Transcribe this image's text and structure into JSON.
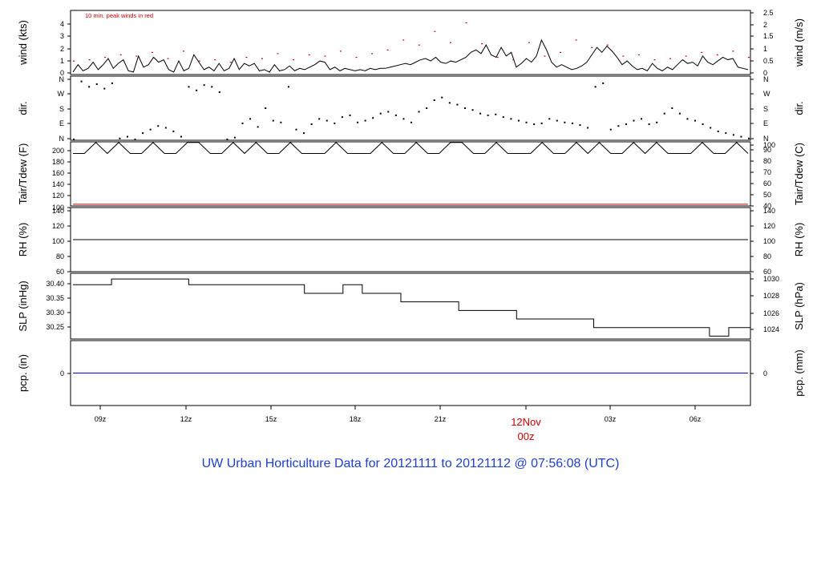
{
  "title": "UW Urban Horticulture Data for 20121111  to  20121112 @ 07:56:08  (UTC)",
  "colors": {
    "series": "#000000",
    "peak": "#cc0000",
    "precip": "#0000cc",
    "title": "#1f3fcf",
    "date": "#cc0000",
    "frame": "#000000"
  },
  "x_axis": {
    "ticks": [
      "09z",
      "12z",
      "15z",
      "18z",
      "21z",
      "00z",
      "03z",
      "06z"
    ],
    "date_label": "12Nov",
    "date_hour": "00z"
  },
  "chart_data": [
    {
      "type": "line",
      "panel": "wind",
      "ylabel_left": "wind (kts)",
      "ylabel_right": "wind (m/s)",
      "left_ticks": [
        "0",
        "1",
        "2",
        "3",
        "4"
      ],
      "right_ticks": [
        "0",
        "0.5",
        "1",
        "1.5",
        "2",
        "2.5"
      ],
      "ylim": [
        0,
        5.2
      ],
      "annotation": "10 min. peak winds in red",
      "series": [
        {
          "values": [
            0.2,
            0.8,
            0.3,
            0.5,
            1.0,
            0.4,
            0.8,
            1.3,
            0.5,
            0.9,
            1.2,
            0.3,
            0.2,
            1.5,
            0.6,
            0.8,
            1.4,
            1.0,
            1.2,
            0.4,
            0.2,
            1.1,
            0.3,
            0.5,
            1.6,
            1.0,
            0.4,
            0.6,
            0.3,
            0.9,
            0.3,
            0.5,
            1.3,
            0.4,
            0.9,
            0.7,
            0.9,
            0.3,
            0.4,
            0.2,
            0.8,
            0.3,
            0.4,
            0.7,
            0.3,
            0.5,
            0.4,
            0.6,
            0.8,
            1.1,
            1.0,
            0.4,
            0.6,
            0.3,
            0.5,
            0.4,
            0.3,
            0.4,
            0.3,
            0.5,
            0.4,
            0.5,
            0.5,
            0.6,
            0.7,
            0.8,
            0.9,
            0.8,
            1.0,
            1.2,
            1.3,
            1.1,
            1.4,
            1.0,
            0.9,
            1.1,
            1.0,
            1.2,
            1.4,
            1.8,
            2.0,
            1.7,
            2.4,
            1.6,
            1.4,
            2.2,
            1.5,
            1.8,
            0.6,
            0.9,
            1.3,
            1.0,
            1.5,
            2.8,
            2.0,
            1.0,
            0.6,
            0.8,
            0.6,
            0.4,
            0.5,
            0.7,
            1.0,
            1.6,
            2.2,
            1.8,
            2.3,
            1.9,
            1.4,
            0.8,
            1.1,
            0.7,
            0.4,
            0.5,
            0.3,
            0.9,
            0.5,
            0.3,
            0.6,
            0.4,
            0.8,
            1.2,
            0.9,
            1.0,
            0.7,
            1.5,
            1.0,
            0.8,
            1.1,
            1.4,
            1.2,
            1.3,
            0.6,
            0.5,
            0.4
          ]
        },
        {
          "name": "peak",
          "values": [
            1.1,
            1.2,
            1.4,
            1.6,
            1.5,
            1.8,
            1.3,
            1.9,
            1.1,
            1.2,
            1.0,
            1.4,
            1.3,
            1.7,
            1.2,
            1.6,
            1.5,
            1.9,
            1.4,
            1.7,
            2.0,
            2.8,
            2.4,
            3.5,
            2.6,
            4.2,
            2.5,
            1.4,
            1.2,
            2.6,
            1.5,
            1.8,
            2.8,
            2.2,
            2.4,
            1.5,
            1.6,
            1.2,
            1.3,
            1.5,
            1.8,
            1.6,
            1.9,
            1.4
          ]
        }
      ]
    },
    {
      "type": "scatter",
      "panel": "dir",
      "ylabel_left": "dir.",
      "ylabel_right": "dir.",
      "left_ticks": [
        "N",
        "E",
        "S",
        "W",
        "N"
      ],
      "right_ticks": [
        "N",
        "E",
        "S",
        "W",
        "N"
      ],
      "ylim": [
        0,
        360
      ],
      "series": [
        {
          "values": [
            5,
            330,
            300,
            315,
            290,
            320,
            10,
            20,
            5,
            40,
            60,
            80,
            70,
            50,
            20,
            300,
            280,
            310,
            300,
            270,
            5,
            15,
            95,
            120,
            75,
            180,
            110,
            100,
            300,
            60,
            40,
            90,
            120,
            110,
            95,
            130,
            140,
            100,
            110,
            125,
            150,
            160,
            140,
            120,
            100,
            160,
            180,
            225,
            240,
            210,
            200,
            180,
            170,
            150,
            140,
            145,
            130,
            120,
            110,
            100,
            90,
            95,
            120,
            110,
            100,
            95,
            85,
            70,
            300,
            320,
            60,
            80,
            90,
            110,
            120,
            90,
            100,
            150,
            180,
            150,
            120,
            110,
            90,
            70,
            50,
            40,
            30,
            20,
            10
          ]
        }
      ]
    },
    {
      "type": "line",
      "panel": "temp",
      "ylabel_left": "Tair/Tdew (F)",
      "ylabel_right": "Tair/Tdew (C)",
      "left_ticks": [
        "100",
        "120",
        "140",
        "160",
        "180",
        "200"
      ],
      "right_ticks": [
        "40",
        "50",
        "60",
        "70",
        "80",
        "90",
        "100"
      ],
      "ylim": [
        100,
        210
      ],
      "series": [
        {
          "name": "Tair",
          "values": [
            190,
            190,
            209,
            190,
            209,
            190,
            190,
            209,
            190,
            190,
            209,
            209,
            190,
            190,
            209,
            190,
            209,
            190,
            190,
            209,
            190,
            190,
            190,
            209,
            190,
            190,
            190,
            209,
            190,
            190,
            209,
            190,
            190,
            209,
            209,
            190,
            190,
            209,
            190,
            190,
            190,
            209,
            190,
            190,
            209,
            190,
            209,
            190,
            190,
            209,
            190,
            209,
            190,
            190,
            190,
            209,
            190,
            190,
            209,
            190
          ]
        },
        {
          "name": "Tdew",
          "values": [
            103,
            103,
            103,
            103,
            103,
            103,
            103,
            103,
            103,
            103
          ]
        }
      ]
    },
    {
      "type": "line",
      "panel": "rh",
      "ylabel_left": "RH (%)",
      "ylabel_right": "RH (%)",
      "left_ticks": [
        "60",
        "80",
        "100",
        "120",
        "140"
      ],
      "right_ticks": [
        "60",
        "80",
        "100",
        "120",
        "140"
      ],
      "ylim": [
        60,
        140
      ],
      "series": [
        {
          "values": [
            100,
            100,
            100,
            100,
            100,
            100,
            100,
            100,
            100,
            100
          ]
        }
      ]
    },
    {
      "type": "line",
      "panel": "slp",
      "ylabel_left": "SLP (inHg)",
      "ylabel_right": "SLP (hPa)",
      "left_ticks": [
        "30.25",
        "30.30",
        "30.35",
        "30.40"
      ],
      "right_ticks": [
        "1024",
        "1026",
        "1028",
        "1030"
      ],
      "ylim": [
        30.2,
        30.43
      ],
      "series": [
        {
          "values": [
            30.39,
            30.39,
            30.41,
            30.41,
            30.41,
            30.41,
            30.39,
            30.39,
            30.39,
            30.39,
            30.39,
            30.39,
            30.36,
            30.36,
            30.39,
            30.36,
            30.36,
            30.33,
            30.33,
            30.33,
            30.3,
            30.3,
            30.3,
            30.27,
            30.27,
            30.27,
            30.27,
            30.24,
            30.24,
            30.24,
            30.24,
            30.24,
            30.24,
            30.21,
            30.24,
            30.24
          ]
        }
      ]
    },
    {
      "type": "line",
      "panel": "pcp",
      "ylabel_left": "pcp. (in)",
      "ylabel_right": "pcp. (mm)",
      "left_ticks": [
        "0"
      ],
      "right_ticks": [
        "0"
      ],
      "ylim": [
        -1,
        1
      ],
      "series": [
        {
          "values": [
            0,
            0,
            0,
            0,
            0,
            0,
            0,
            0,
            0,
            0
          ]
        }
      ]
    }
  ]
}
